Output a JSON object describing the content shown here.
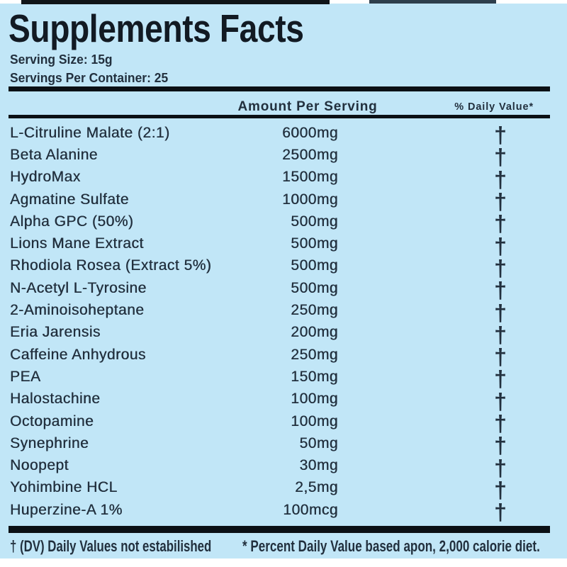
{
  "title": "Supplements Facts",
  "serving_size": "Serving Size: 15g",
  "servings_per_container": "Servings Per Container: 25",
  "columns": {
    "amount_header": "Amount Per Serving",
    "daily_value_header": "% Daily Value*"
  },
  "rows": [
    {
      "name": "L-Citruline Malate (2:1)",
      "amount": "6000mg",
      "dv": "†"
    },
    {
      "name": "Beta Alanine",
      "amount": "2500mg",
      "dv": "†"
    },
    {
      "name": "HydroMax",
      "amount": "1500mg",
      "dv": "†"
    },
    {
      "name": "Agmatine Sulfate",
      "amount": "1000mg",
      "dv": "†"
    },
    {
      "name": "Alpha GPC (50%)",
      "amount": "500mg",
      "dv": "†"
    },
    {
      "name": "Lions Mane Extract",
      "amount": "500mg",
      "dv": "†"
    },
    {
      "name": "Rhodiola Rosea (Extract 5%)",
      "amount": "500mg",
      "dv": "†"
    },
    {
      "name": "N-Acetyl L-Tyrosine",
      "amount": "500mg",
      "dv": "†"
    },
    {
      "name": "2-Aminoisoheptane",
      "amount": "250mg",
      "dv": "†"
    },
    {
      "name": "Eria Jarensis",
      "amount": "200mg",
      "dv": "†"
    },
    {
      "name": "Caffeine Anhydrous",
      "amount": "250mg",
      "dv": "†"
    },
    {
      "name": "PEA",
      "amount": "150mg",
      "dv": "†"
    },
    {
      "name": "Halostachine",
      "amount": "100mg",
      "dv": "†"
    },
    {
      "name": "Octopamine",
      "amount": "100mg",
      "dv": "†"
    },
    {
      "name": "Synephrine",
      "amount": "50mg",
      "dv": "†"
    },
    {
      "name": "Noopept",
      "amount": "30mg",
      "dv": "†"
    },
    {
      "name": "Yohimbine HCL",
      "amount": "2,5mg",
      "dv": "†"
    },
    {
      "name": "Huperzine-A 1%",
      "amount": "100mcg",
      "dv": "†"
    }
  ],
  "footnotes": {
    "left": "† (DV) Daily Values not estabilished",
    "right": "* Percent Daily Value based apon, 2,000 calorie diet."
  },
  "colors": {
    "background": "#c1e6f7",
    "title_text": "#121a23",
    "body_text": "#22303e",
    "rule": "#0b1015",
    "top_bar": "#101418",
    "top_bar_2": "#2e3f4c"
  }
}
